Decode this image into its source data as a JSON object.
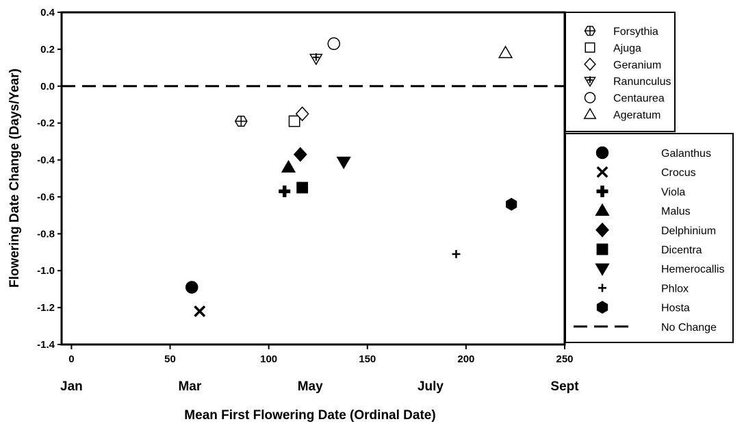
{
  "chart_data": {
    "type": "scatter",
    "xlabel": "Mean First Flowering Date (Ordinal Date)",
    "ylabel": "Flowering Date Change (Days/Year)",
    "xlim": [
      -5,
      250
    ],
    "ylim": [
      -1.4,
      0.4
    ],
    "x_ticks": [
      0,
      50,
      100,
      150,
      200,
      250
    ],
    "x_tick_labels": [
      "0",
      "50",
      "100",
      "150",
      "200",
      "250"
    ],
    "y_ticks": [
      -1.4,
      -1.2,
      -1.0,
      -0.8,
      -0.6,
      -0.4,
      -0.2,
      0.0,
      0.2,
      0.4
    ],
    "y_tick_labels": [
      "-1.4",
      "-1.2",
      "-1.0",
      "-0.8",
      "-0.6",
      "-0.4",
      "-0.2",
      "0.0",
      "0.2",
      "0.4"
    ],
    "month_labels": [
      {
        "label": "Jan",
        "x": 0
      },
      {
        "label": "Mar",
        "x": 60
      },
      {
        "label": "May",
        "x": 121
      },
      {
        "label": "July",
        "x": 182
      },
      {
        "label": "Sept",
        "x": 250
      }
    ],
    "grid": false,
    "legend_position": "right",
    "series": [
      {
        "name": "Forsythia",
        "marker": "crossed-hexagon",
        "filled": false,
        "x": 86,
        "y": -0.19,
        "legend_group": "open"
      },
      {
        "name": "Ajuga",
        "marker": "square",
        "filled": false,
        "x": 113,
        "y": -0.19,
        "legend_group": "open"
      },
      {
        "name": "Geranium",
        "marker": "diamond",
        "filled": false,
        "x": 117,
        "y": -0.15,
        "legend_group": "open"
      },
      {
        "name": "Ranunculus",
        "marker": "crossed-triangle-down",
        "filled": false,
        "x": 124,
        "y": 0.15,
        "legend_group": "open"
      },
      {
        "name": "Centaurea",
        "marker": "circle",
        "filled": false,
        "x": 133,
        "y": 0.23,
        "legend_group": "open"
      },
      {
        "name": "Ageratum",
        "marker": "triangle-up",
        "filled": false,
        "x": 220,
        "y": 0.18,
        "legend_group": "open"
      },
      {
        "name": "Galanthus",
        "marker": "circle",
        "filled": true,
        "x": 61,
        "y": -1.09,
        "legend_group": "filled"
      },
      {
        "name": "Crocus",
        "marker": "x",
        "filled": true,
        "x": 65,
        "y": -1.22,
        "legend_group": "filled"
      },
      {
        "name": "Viola",
        "marker": "plus-thick",
        "filled": true,
        "x": 108,
        "y": -0.57,
        "legend_group": "filled"
      },
      {
        "name": "Malus",
        "marker": "triangle-up",
        "filled": true,
        "x": 110,
        "y": -0.44,
        "legend_group": "filled"
      },
      {
        "name": "Delphinium",
        "marker": "diamond",
        "filled": true,
        "x": 116,
        "y": -0.37,
        "legend_group": "filled"
      },
      {
        "name": "Dicentra",
        "marker": "square",
        "filled": true,
        "x": 117,
        "y": -0.55,
        "legend_group": "filled"
      },
      {
        "name": "Hemerocallis",
        "marker": "triangle-down",
        "filled": true,
        "x": 138,
        "y": -0.41,
        "legend_group": "filled"
      },
      {
        "name": "Phlox",
        "marker": "plus-thin",
        "filled": true,
        "x": 195,
        "y": -0.91,
        "legend_group": "filled"
      },
      {
        "name": "Hosta",
        "marker": "hexagon",
        "filled": true,
        "x": 223,
        "y": -0.64,
        "legend_group": "filled"
      }
    ],
    "reference_line": {
      "name": "No Change",
      "y": 0.0,
      "style": "dashed"
    }
  }
}
